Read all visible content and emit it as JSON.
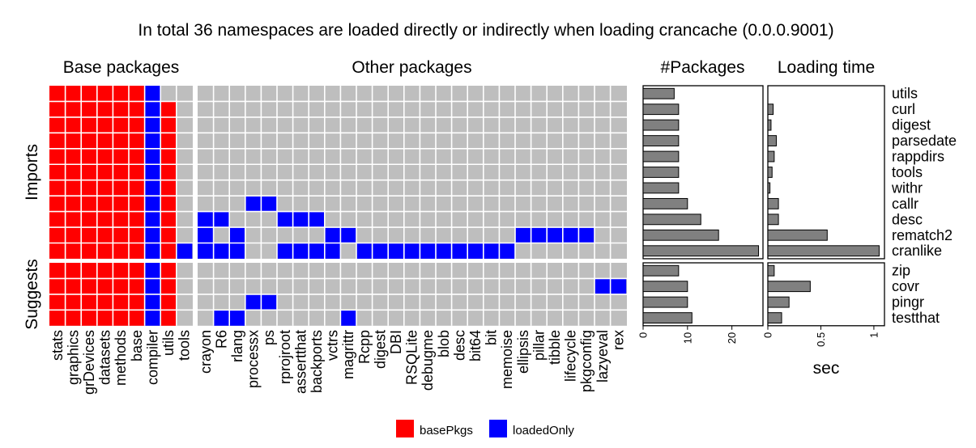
{
  "chart_data": {
    "type": "heatmap",
    "title": "In total 36 namespaces are loaded directly or indirectly when loading crancache (0.0.0.9001)",
    "panel_titles": {
      "base": "Base packages",
      "other": "Other packages",
      "count": "#Packages",
      "time": "Loading time"
    },
    "row_groups": [
      {
        "label": "Imports",
        "rows": [
          "utils",
          "curl",
          "digest",
          "parsedate",
          "rappdirs",
          "tools",
          "withr",
          "callr",
          "desc",
          "rematch2",
          "cranlike"
        ]
      },
      {
        "label": "Suggests",
        "rows": [
          "zip",
          "covr",
          "pingr",
          "testthat"
        ]
      }
    ],
    "base_packages": [
      "stats",
      "graphics",
      "grDevices",
      "datasets",
      "methods",
      "base",
      "compiler",
      "utils",
      "tools"
    ],
    "other_packages": [
      "crayon",
      "R6",
      "rlang",
      "processx",
      "ps",
      "rprojroot",
      "assertthat",
      "backports",
      "vctrs",
      "magrittr",
      "Rcpp",
      "digest",
      "DBI",
      "RSQLite",
      "debugme",
      "blob",
      "desc",
      "bit64",
      "bit",
      "memoise",
      "ellipsis",
      "pillar",
      "tibble",
      "lifecycle",
      "pkgconfig",
      "lazyeval",
      "rex"
    ],
    "legend": [
      {
        "label": "basePkgs",
        "color": "#ff0000"
      },
      {
        "label": "loadedOnly",
        "color": "#0000ff"
      }
    ],
    "colors": {
      "basePkgs": "#ff0000",
      "loadedOnly": "#0000ff",
      "none": "#bebebe",
      "bar": "#808080"
    },
    "cells": {
      "utils": {
        "basePkgs": [
          "stats",
          "graphics",
          "grDevices",
          "datasets",
          "methods",
          "base"
        ],
        "loadedOnly": [
          "compiler"
        ]
      },
      "curl": {
        "basePkgs": [
          "stats",
          "graphics",
          "grDevices",
          "datasets",
          "methods",
          "base",
          "utils"
        ],
        "loadedOnly": [
          "compiler"
        ]
      },
      "digest": {
        "basePkgs": [
          "stats",
          "graphics",
          "grDevices",
          "datasets",
          "methods",
          "base",
          "utils"
        ],
        "loadedOnly": [
          "compiler"
        ]
      },
      "parsedate": {
        "basePkgs": [
          "stats",
          "graphics",
          "grDevices",
          "datasets",
          "methods",
          "base",
          "utils"
        ],
        "loadedOnly": [
          "compiler"
        ]
      },
      "rappdirs": {
        "basePkgs": [
          "stats",
          "graphics",
          "grDevices",
          "datasets",
          "methods",
          "base",
          "utils"
        ],
        "loadedOnly": [
          "compiler"
        ]
      },
      "tools": {
        "basePkgs": [
          "stats",
          "graphics",
          "grDevices",
          "datasets",
          "methods",
          "base",
          "utils"
        ],
        "loadedOnly": [
          "compiler"
        ]
      },
      "withr": {
        "basePkgs": [
          "stats",
          "graphics",
          "grDevices",
          "datasets",
          "methods",
          "base",
          "utils"
        ],
        "loadedOnly": [
          "compiler"
        ]
      },
      "callr": {
        "basePkgs": [
          "stats",
          "graphics",
          "grDevices",
          "datasets",
          "methods",
          "base",
          "utils"
        ],
        "loadedOnly": [
          "compiler",
          "processx",
          "ps"
        ]
      },
      "desc": {
        "basePkgs": [
          "stats",
          "graphics",
          "grDevices",
          "datasets",
          "methods",
          "base",
          "utils"
        ],
        "loadedOnly": [
          "compiler",
          "crayon",
          "R6",
          "rprojroot",
          "assertthat",
          "backports"
        ]
      },
      "rematch2": {
        "basePkgs": [
          "stats",
          "graphics",
          "grDevices",
          "datasets",
          "methods",
          "base",
          "utils"
        ],
        "loadedOnly": [
          "compiler",
          "crayon",
          "rlang",
          "vctrs",
          "magrittr",
          "ellipsis",
          "pillar",
          "tibble",
          "lifecycle",
          "pkgconfig"
        ]
      },
      "cranlike": {
        "basePkgs": [
          "stats",
          "graphics",
          "grDevices",
          "datasets",
          "methods",
          "base",
          "utils"
        ],
        "loadedOnly": [
          "compiler",
          "tools",
          "crayon",
          "R6",
          "rlang",
          "rprojroot",
          "assertthat",
          "backports",
          "vctrs",
          "Rcpp",
          "digest",
          "DBI",
          "RSQLite",
          "debugme",
          "blob",
          "desc",
          "bit64",
          "bit",
          "memoise"
        ]
      },
      "zip": {
        "basePkgs": [
          "stats",
          "graphics",
          "grDevices",
          "datasets",
          "methods",
          "base",
          "utils"
        ],
        "loadedOnly": [
          "compiler"
        ]
      },
      "covr": {
        "basePkgs": [
          "stats",
          "graphics",
          "grDevices",
          "datasets",
          "methods",
          "base",
          "utils"
        ],
        "loadedOnly": [
          "compiler",
          "lazyeval",
          "rex"
        ]
      },
      "pingr": {
        "basePkgs": [
          "stats",
          "graphics",
          "grDevices",
          "datasets",
          "methods",
          "base",
          "utils"
        ],
        "loadedOnly": [
          "compiler",
          "processx",
          "ps"
        ]
      },
      "testthat": {
        "basePkgs": [
          "stats",
          "graphics",
          "grDevices",
          "datasets",
          "methods",
          "base",
          "utils"
        ],
        "loadedOnly": [
          "compiler",
          "R6",
          "rlang",
          "magrittr"
        ]
      }
    },
    "package_counts": {
      "utils": 7,
      "curl": 8,
      "digest": 8,
      "parsedate": 8,
      "rappdirs": 8,
      "tools": 8,
      "withr": 8,
      "callr": 10,
      "desc": 13,
      "rematch2": 17,
      "cranlike": 26,
      "zip": 8,
      "covr": 10,
      "pingr": 10,
      "testthat": 11
    },
    "loading_time_sec": {
      "utils": 0,
      "curl": 0.05,
      "digest": 0.03,
      "parsedate": 0.08,
      "rappdirs": 0.06,
      "tools": 0.04,
      "withr": 0.02,
      "callr": 0.1,
      "desc": 0.1,
      "rematch2": 0.56,
      "cranlike": 1.05,
      "zip": 0.06,
      "covr": 0.4,
      "pingr": 0.2,
      "testthat": 0.13
    },
    "count_axis": {
      "ticks": [
        0,
        10,
        20
      ],
      "range": [
        0,
        27
      ]
    },
    "time_axis": {
      "ticks": [
        "0",
        "0.5",
        "1"
      ],
      "tick_values": [
        0,
        0.5,
        1
      ],
      "range": [
        0,
        1.1
      ],
      "label": "sec"
    }
  }
}
